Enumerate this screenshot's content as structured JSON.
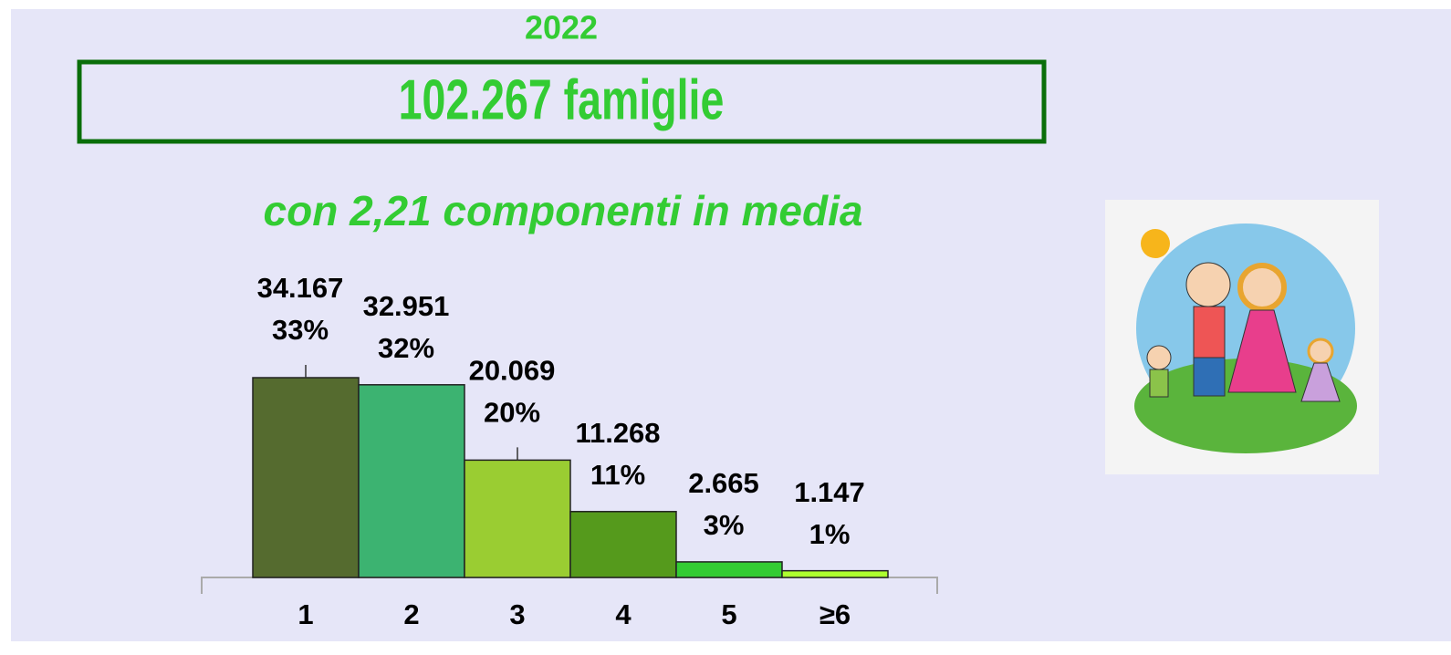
{
  "chart_data": {
    "type": "bar",
    "title": "2022",
    "subtitle": "102.267 famiglie",
    "annotation": "con 2,21 componenti in media",
    "categories": [
      "1",
      "2",
      "3",
      "4",
      "5",
      "≥6"
    ],
    "values": [
      34167,
      32951,
      20069,
      11268,
      2665,
      1147
    ],
    "value_labels": [
      "34.167",
      "32.951",
      "20.069",
      "11.268",
      "2.665",
      "1.147"
    ],
    "share_labels": [
      "33%",
      "32%",
      "20%",
      "11%",
      "3%",
      "1%"
    ],
    "colors": [
      "#556b2f",
      "#3cb371",
      "#9acd32",
      "#559a1c",
      "#33cc33",
      "#adff2f"
    ]
  }
}
